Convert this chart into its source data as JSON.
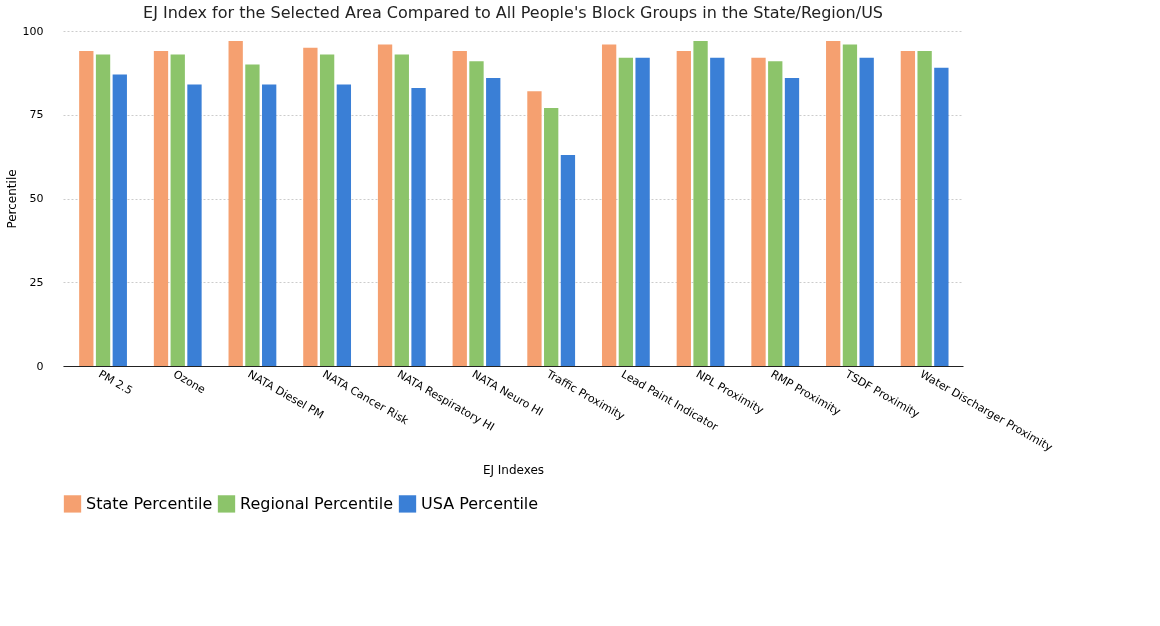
{
  "chart_data": {
    "type": "bar",
    "title": "EJ Index for the Selected Area Compared to All People's Block Groups in the State/Region/US",
    "xlabel": "EJ Indexes",
    "ylabel": "Percentile",
    "categories": [
      "PM 2.5",
      "Ozone",
      "NATA Diesel PM",
      "NATA Cancer Risk",
      "NATA Respiratory HI",
      "NATA Neuro HI",
      "Traffic Proximity",
      "Lead Paint Indicator",
      "NPL Proximity",
      "RMP Proximity",
      "TSDF Proximity",
      "Water Discharger Proximity"
    ],
    "series": [
      {
        "name": "State Percentile",
        "color": "#f5a070",
        "values": [
          94,
          94,
          97,
          95,
          96,
          94,
          82,
          96,
          94,
          92,
          97,
          94
        ]
      },
      {
        "name": "Regional Percentile",
        "color": "#8cc46a",
        "values": [
          93,
          93,
          90,
          93,
          93,
          91,
          77,
          92,
          97,
          91,
          96,
          94
        ]
      },
      {
        "name": "USA Percentile",
        "color": "#3a7fd6",
        "values": [
          87,
          84,
          84,
          84,
          83,
          86,
          63,
          92,
          92,
          86,
          92,
          89
        ]
      }
    ],
    "ylim": [
      0,
      100
    ],
    "yticks": [
      0,
      25,
      50,
      75,
      100
    ],
    "grid": "y",
    "legend": "bottom"
  }
}
